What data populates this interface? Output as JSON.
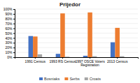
{
  "chart_data": {
    "type": "bar",
    "title": "Prijedor",
    "categories": [
      "1991 Census",
      "1993 RS Census",
      "1997 OSCE Voters\nRegistration",
      "2013 Census"
    ],
    "series": [
      {
        "name": "Bosniaks",
        "color": "#4472C4",
        "values": [
          44,
          7,
          3,
          31
        ]
      },
      {
        "name": "Serbs",
        "color": "#ED7D31",
        "values": [
          43,
          91,
          93,
          61
        ]
      },
      {
        "name": "Croats",
        "color": "#A5A5A5",
        "values": [
          6,
          1,
          2,
          2
        ]
      }
    ],
    "ylim": [
      0,
      100
    ],
    "yticks": [
      {
        "value": 0,
        "label": "0%"
      },
      {
        "value": 10,
        "label": "10%"
      },
      {
        "value": 20,
        "label": "20%"
      },
      {
        "value": 30,
        "label": "30%"
      },
      {
        "value": 40,
        "label": "40%"
      },
      {
        "value": 50,
        "label": "50%"
      },
      {
        "value": 60,
        "label": "60%"
      },
      {
        "value": 70,
        "label": "70%"
      },
      {
        "value": 80,
        "label": "80%"
      },
      {
        "value": 90,
        "label": "90%"
      },
      {
        "value": 100,
        "label": "100%"
      }
    ],
    "grid": true,
    "legend": "bottom"
  }
}
